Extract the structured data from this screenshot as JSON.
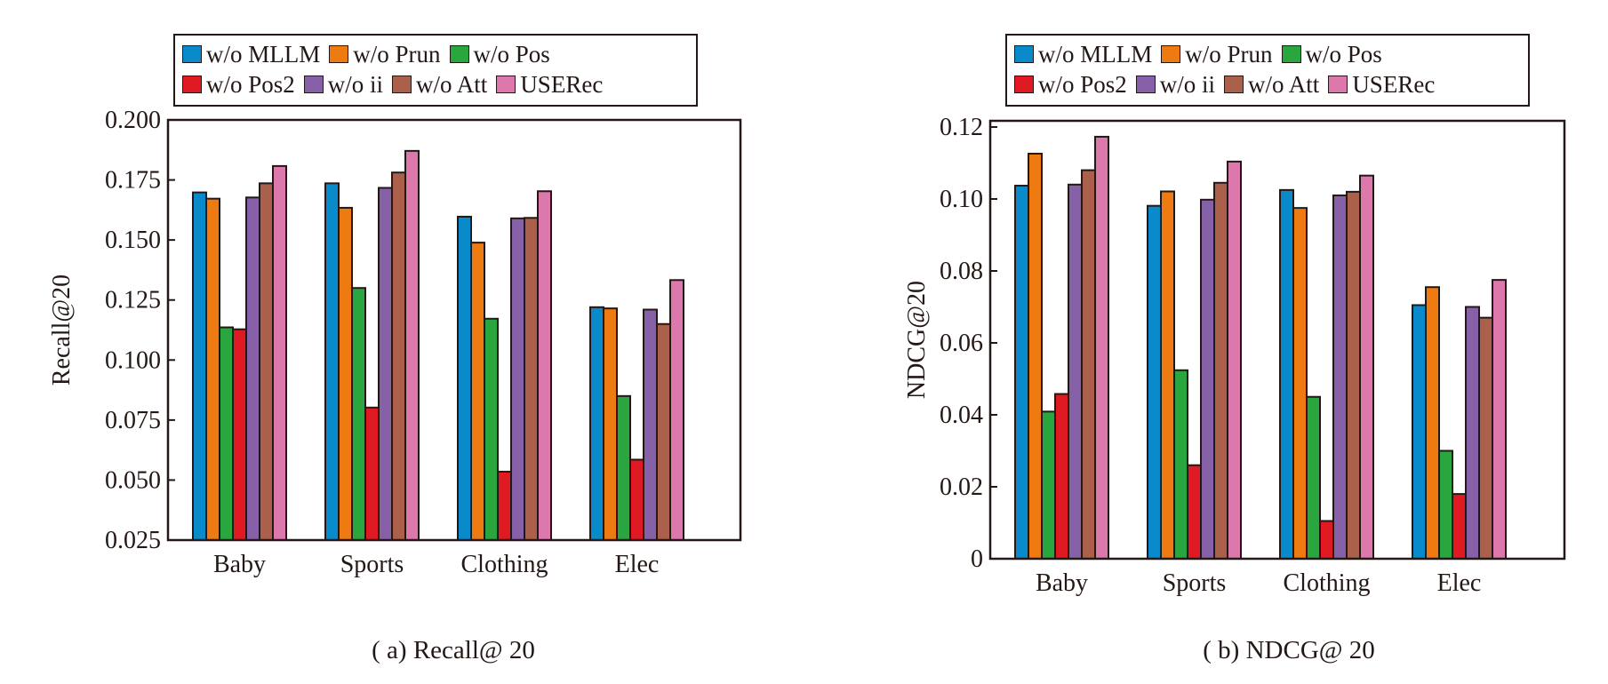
{
  "series_colors": {
    "w/o MLLM": "#088acb",
    "w/o Prun": "#ee7a12",
    "w/o Pos": "#29a63e",
    "w/o Pos2": "#e01a22",
    "w/o ii": "#8761a8",
    "w/o Att": "#aa604a",
    "USERec": "#dd78ad"
  },
  "chart_data": [
    {
      "type": "bar",
      "caption": "( a) Recall@ 20",
      "ylabel": "Recall@20",
      "xlabel": "",
      "categories": [
        "Baby",
        "Sports",
        "Clothing",
        "Elec"
      ],
      "yticks": [
        "0.025",
        "0.050",
        "0.075",
        "0.100",
        "0.125",
        "0.150",
        "0.175",
        "0.200"
      ],
      "ylim": [
        0.025,
        0.2
      ],
      "legend_rows": [
        [
          "w/o MLLM",
          "w/o Prun",
          "w/o Pos"
        ],
        [
          "w/o Pos2",
          "w/o ii",
          "w/o Att",
          "USERec"
        ]
      ],
      "legend_position": "top",
      "series": [
        {
          "name": "w/o MLLM",
          "values": [
            0.1698,
            0.1736,
            0.1597,
            0.122
          ]
        },
        {
          "name": "w/o Prun",
          "values": [
            0.1672,
            0.1634,
            0.1489,
            0.1215
          ]
        },
        {
          "name": "w/o Pos",
          "values": [
            0.1136,
            0.13,
            0.1172,
            0.085
          ]
        },
        {
          "name": "w/o Pos2",
          "values": [
            0.1128,
            0.0802,
            0.0535,
            0.0585
          ]
        },
        {
          "name": "w/o ii",
          "values": [
            0.1677,
            0.1717,
            0.159,
            0.121
          ]
        },
        {
          "name": "w/o Att",
          "values": [
            0.1736,
            0.1781,
            0.1592,
            0.115
          ]
        },
        {
          "name": "USERec",
          "values": [
            0.1808,
            0.1871,
            0.1703,
            0.1333
          ]
        }
      ]
    },
    {
      "type": "bar",
      "caption": "( b) NDCG@ 20",
      "ylabel": "NDCG@20",
      "xlabel": "",
      "categories": [
        "Baby",
        "Sports",
        "Clothing",
        "Elec"
      ],
      "yticks": [
        "0",
        "0.02",
        "0.04",
        "0.06",
        "0.08",
        "0.10",
        "0.12"
      ],
      "ylim": [
        0,
        0.12
      ],
      "legend_rows": [
        [
          "w/o MLLM",
          "w/o Prun",
          "w/o Pos"
        ],
        [
          "w/o Pos2",
          "w/o ii",
          "w/o Att",
          "USERec"
        ]
      ],
      "legend_position": "top",
      "series": [
        {
          "name": "w/o MLLM",
          "values": [
            0.1037,
            0.0981,
            0.1025,
            0.0705
          ]
        },
        {
          "name": "w/o Prun",
          "values": [
            0.1126,
            0.1021,
            0.0975,
            0.0755
          ]
        },
        {
          "name": "w/o Pos",
          "values": [
            0.0409,
            0.0524,
            0.045,
            0.03
          ]
        },
        {
          "name": "w/o Pos2",
          "values": [
            0.0458,
            0.026,
            0.0105,
            0.018
          ]
        },
        {
          "name": "w/o ii",
          "values": [
            0.104,
            0.0998,
            0.101,
            0.07
          ]
        },
        {
          "name": "w/o Att",
          "values": [
            0.108,
            0.1045,
            0.102,
            0.067
          ]
        },
        {
          "name": "USERec",
          "values": [
            0.1173,
            0.1104,
            0.1065,
            0.0775
          ]
        }
      ]
    }
  ]
}
